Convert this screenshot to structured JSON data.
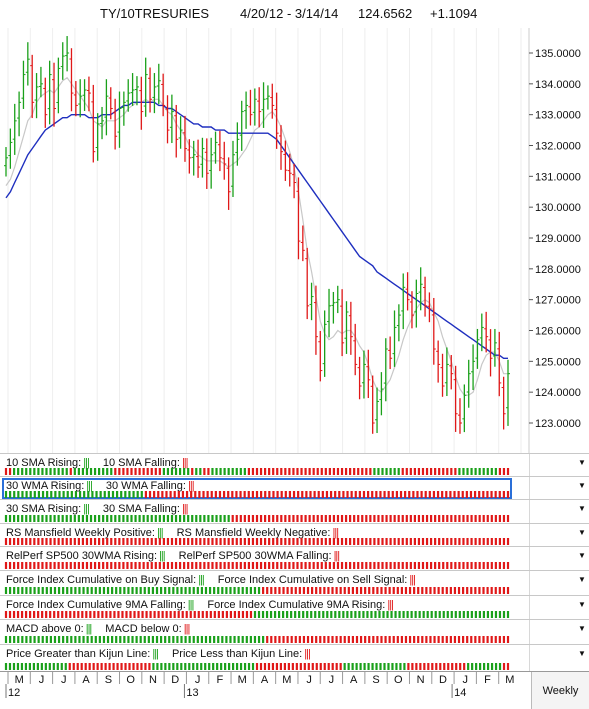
{
  "header": {
    "symbol": "TY/10TRESURIES",
    "range": "4/20/12 - 3/14/14",
    "last": "124.6562",
    "change": "+1.1094"
  },
  "chart_data": {
    "type": "ohlc",
    "title": "TY/10TRESURIES",
    "ylim": [
      122.2,
      135.6
    ],
    "yticks": [
      "135.0000",
      "134.0000",
      "133.0000",
      "132.0000",
      "131.0000",
      "130.0000",
      "129.0000",
      "128.0000",
      "127.0000",
      "126.0000",
      "125.0000",
      "124.0000",
      "123.0000"
    ],
    "close": [
      131.6,
      132.1,
      132.8,
      133.4,
      134.3,
      134.8,
      133.4,
      133.9,
      134.0,
      133.0,
      134.3,
      133.2,
      134.5,
      134.9,
      135.0,
      133.7,
      133.3,
      133.6,
      133.8,
      133.7,
      131.8,
      132.7,
      132.8,
      133.6,
      133.2,
      132.3,
      133.2,
      133.4,
      133.7,
      133.8,
      133.9,
      133.1,
      134.3,
      133.5,
      133.9,
      134.1,
      133.3,
      132.5,
      133.1,
      132.2,
      132.5,
      131.9,
      131.6,
      131.7,
      131.3,
      131.9,
      131.1,
      131.7,
      132.1,
      131.6,
      131.4,
      130.5,
      131.7,
      132.2,
      133.1,
      133.3,
      133.0,
      133.5,
      133.1,
      133.5,
      133.6,
      133.3,
      132.4,
      131.8,
      131.2,
      131.1,
      130.8,
      128.9,
      128.6,
      126.8,
      127.1,
      125.8,
      124.7,
      126.2,
      126.8,
      126.9,
      127.0,
      125.6,
      126.6,
      125.8,
      124.9,
      124.2,
      124.9,
      124.4,
      123.0,
      123.7,
      124.1,
      125.4,
      125.1,
      126.1,
      126.5,
      127.4,
      127.0,
      126.5,
      127.2,
      127.5,
      126.8,
      126.7,
      125.4,
      124.9,
      124.2,
      124.9,
      124.6,
      123.3,
      123.0,
      123.9,
      124.6,
      125.0,
      125.7,
      126.1,
      125.8,
      125.1,
      125.6,
      124.3,
      123.3,
      124.6
    ],
    "series": [
      {
        "name": "",
        "color": "#1f2fbf",
        "values": [
          130.3,
          130.5,
          130.8,
          131.1,
          131.4,
          131.7,
          131.9,
          132.1,
          132.3,
          132.5,
          132.6,
          132.7,
          132.8,
          132.9,
          132.9,
          133.0,
          133.0,
          133.0,
          133.0,
          132.9,
          132.9,
          132.9,
          133.0,
          133.0,
          133.0,
          133.1,
          133.2,
          133.3,
          133.3,
          133.4,
          133.4,
          133.4,
          133.4,
          133.4,
          133.4,
          133.3,
          133.3,
          133.2,
          133.2,
          133.1,
          133.0,
          132.9,
          132.8,
          132.7,
          132.7,
          132.6,
          132.6,
          132.6,
          132.5,
          132.5,
          132.5,
          132.4,
          132.4,
          132.4,
          132.4,
          132.4,
          132.4,
          132.4,
          132.4,
          132.4,
          132.4,
          132.3,
          132.2,
          132.0,
          131.8,
          131.6,
          131.4,
          131.2,
          131.0,
          130.8,
          130.6,
          130.4,
          130.2,
          130.0,
          129.8,
          129.6,
          129.4,
          129.2,
          129.0,
          128.8,
          128.6,
          128.4,
          128.3,
          128.2,
          128.1,
          127.9,
          127.8,
          127.7,
          127.6,
          127.5,
          127.4,
          127.3,
          127.2,
          127.1,
          127.0,
          126.9,
          126.8,
          126.7,
          126.6,
          126.5,
          126.4,
          126.3,
          126.2,
          126.1,
          126.0,
          125.9,
          125.8,
          125.7,
          125.6,
          125.5,
          125.4,
          125.3,
          125.2,
          125.2,
          125.1,
          125.1
        ]
      },
      {
        "name": "",
        "color": "#c8c8c8",
        "values": [
          130.7,
          130.9,
          131.3,
          131.8,
          132.3,
          132.8,
          133.0,
          133.4,
          133.6,
          133.7,
          133.8,
          133.7,
          133.9,
          134.1,
          134.2,
          134.0,
          133.8,
          133.6,
          133.4,
          133.2,
          132.8,
          132.7,
          132.6,
          132.8,
          132.8,
          132.8,
          132.9,
          133.0,
          133.2,
          133.3,
          133.4,
          133.4,
          133.5,
          133.4,
          133.5,
          133.5,
          133.3,
          133.1,
          133.0,
          132.7,
          132.5,
          132.3,
          132.0,
          131.9,
          131.7,
          131.6,
          131.5,
          131.5,
          131.5,
          131.5,
          131.4,
          131.3,
          131.4,
          131.5,
          131.7,
          131.9,
          132.2,
          132.5,
          132.6,
          132.8,
          133.0,
          133.1,
          132.9,
          132.6,
          132.2,
          131.8,
          131.3,
          130.5,
          129.6,
          128.6,
          127.9,
          127.1,
          126.3,
          125.9,
          125.7,
          125.8,
          126.0,
          125.9,
          126.0,
          126.0,
          125.8,
          125.5,
          125.3,
          124.9,
          124.4,
          124.1,
          124.0,
          124.2,
          124.4,
          124.8,
          125.2,
          125.7,
          126.1,
          126.4,
          126.7,
          126.9,
          127.0,
          126.9,
          126.6,
          126.3,
          125.8,
          125.4,
          125.0,
          124.5,
          124.1,
          123.9,
          123.9,
          124.0,
          124.4,
          124.9,
          125.2,
          125.3,
          125.3,
          125.0,
          124.6,
          124.6
        ]
      }
    ],
    "xlabels": [
      "M",
      "J",
      "J",
      "A",
      "S",
      "O",
      "N",
      "D",
      "J",
      "F",
      "M",
      "A",
      "M",
      "J",
      "J",
      "A",
      "S",
      "O",
      "N",
      "D",
      "J",
      "F",
      "M"
    ],
    "year_labels": [
      "12",
      "13",
      "14"
    ]
  },
  "panels": [
    {
      "label_a": "10 SMA Rising:",
      "label_b": "10 SMA Falling:",
      "signals": "RRGGGGGGGGGGGGGGRGGGGGGGGGGRRRRRRRRRRRRGGGGGGGRGGRRGGGGGGGGGRRRRRRRRRRRRRRRRRRRRRRRRRRRRRRRGGGGGGGRRRRRRRRRRRRRRGGGGGGGGGGRRR"
    },
    {
      "label_a": "30 WMA Rising:",
      "label_b": "30 WMA Falling:",
      "signals": "GGGGGGGGGGGGGGGGGGGGGGGGGGGGGGGGGGRRRRRRRRRRRRRRRRRRRRRRRRRRRRRRRRRRRRRRRRRRRRRRRRRRRRRRRRRRRRRRRRRRRRRRRRRRRRRRRRRRRRRRRRR"
    },
    {
      "label_a": "30 SMA Rising:",
      "label_b": "30 SMA Falling:",
      "signals": "GGGGGGGGGGGGGGGGGGGGGGGGGGGGGGGGGGGGGGGGGGGGGGGGGGGGGGGGRRRRRRRRRRRRRRRRRRRRRRRRRRRRRRRRRRRRRRRRRRRRRRRRRRRRRRRRRRRRRRRRRRRRR"
    },
    {
      "label_a": "RS Mansfield Weekly Positive:",
      "label_b": "RS Mansfield Weekly Negative:",
      "signals": "RRRRRRRRRRRRRRRRRRRRRRRRRRRRRRRRRRRRRRRRRRRRRRRRRRRRRRRRRRRRRRRRRRRRRRRRRRRRRRRRRRRRRRRRRRRRRRRRRRRRRRRRRRRRRRRRRRRRRRRRRRRRR"
    },
    {
      "label_a": "RelPerf SP500 30WMA Rising:",
      "label_b": "RelPerf SP500 30WMA Falling:",
      "signals": "RRRRRRRRRRRRRRRRRRRRRRRRRRRRRRRRRRRRRRRRRRRRRRRRRRRRRRRRRRRRRRRRRRRRRRRRRRRRRRRRRRRRRRRRRRRRRRRRRRRRRRRRRRRRRRRRRRRRRRRRRRRRR"
    },
    {
      "label_a": "Force Index Cumulative on Buy Signal:",
      "label_b": "Force Index Cumulative on Sell Signal:",
      "signals": "GGGGGGGGGGGGGGGGGGGGGGGGGGGGGGGGGGGGGGGGGGGGGGGGGGGGGGGGGGGGGGGRRRRRRRRRRRRRRRRRRRRRRRRRRRRRRRRRRRRRRRRRRRRRRRRRRRRRRRRRRRRR"
    },
    {
      "label_a": "Force Index Cumulative 9MA Falling:",
      "label_b": "Force Index Cumulative 9MA Rising:",
      "signals": "RRRRRRRRRRRRRRRRRRRRRRRRRRRRRRRRRRRRRRRRRRRRRRRRRRRRRRRRRRRRRRGGGGGGGGGGGGGGGGGGGGGGGGGGGGGGGGGGGGGGGGGGGGGGGGGGGGGGGGGGGGGGGG"
    },
    {
      "label_a": "MACD above 0:",
      "label_b": "MACD below 0:",
      "signals": "GGGGGGGGGGGGGGGGGGGGGGGGGGGGGGGGGGGGGGGGGGGGGGGGGGGGGGGGGGGGGGGGRRRRRRRRRRRRRRRRRRRRRRRRRRRRRRRRRRRRRRRRRRRRRRRRRRRRRRRRRRRR"
    },
    {
      "label_a": "Price Greater than Kijun Line:",
      "label_b": "Price Less than Kijun Line:",
      "signals": "GGGGGGGGGGGGGGGGRRRRRRRRRRRRRRRRRRRRRGGGGGGGGGGGGGGGGGGGGGGGGGGRRRRRRRRRRRRRRRRRRRRRRGGGGGGGGGGGGGGGGRRRRRRRRRRRRRRRGGGGGGGGGRR"
    }
  ],
  "period": "Weekly",
  "colors": {
    "up": "#1aa01a",
    "down": "#e01818",
    "neutral": "#111111",
    "wma": "#1f2fbf",
    "sma": "#c8c8c8",
    "selection": "#2a6fd8"
  }
}
